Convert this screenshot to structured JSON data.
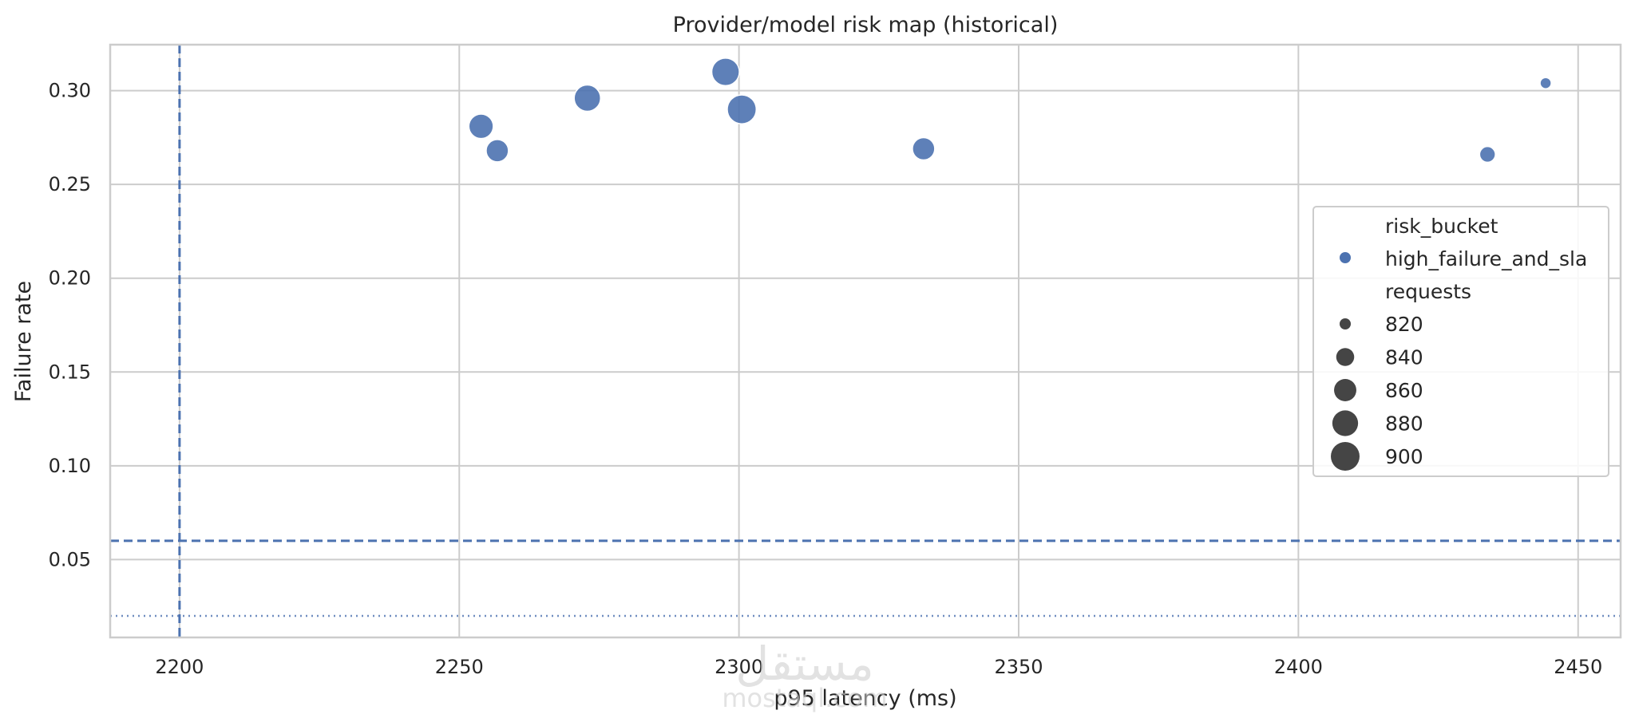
{
  "chart_data": {
    "type": "scatter",
    "title": "Provider/model risk map (historical)",
    "xlabel": "p95 latency (ms)",
    "ylabel": "Failure rate",
    "xlim": [
      2187.6,
      2457.6
    ],
    "ylim": [
      0.0085,
      0.3245
    ],
    "xticks": [
      2200,
      2250,
      2300,
      2350,
      2400,
      2450
    ],
    "yticks": [
      0.05,
      0.1,
      0.15,
      0.2,
      0.25,
      0.3
    ],
    "xtick_labels": [
      "2200",
      "2250",
      "2300",
      "2350",
      "2400",
      "2450"
    ],
    "ytick_labels": [
      "0.05",
      "0.10",
      "0.15",
      "0.20",
      "0.25",
      "0.30"
    ],
    "grid": true,
    "color": "#4c72b0",
    "reference_lines": {
      "vertical_dashed_x": 2200,
      "horizontal_dashed_y": 0.06,
      "horizontal_dotted_y": 0.02
    },
    "series": [
      {
        "name": "high_failure_and_sla",
        "points": [
          {
            "x": 2253.9,
            "y": 0.281,
            "requests": 872
          },
          {
            "x": 2256.8,
            "y": 0.268,
            "requests": 860
          },
          {
            "x": 2272.9,
            "y": 0.296,
            "requests": 884
          },
          {
            "x": 2297.6,
            "y": 0.31,
            "requests": 892
          },
          {
            "x": 2300.5,
            "y": 0.29,
            "requests": 902
          },
          {
            "x": 2333.0,
            "y": 0.269,
            "requests": 860
          },
          {
            "x": 2433.8,
            "y": 0.266,
            "requests": 832
          },
          {
            "x": 2444.2,
            "y": 0.304,
            "requests": 820
          }
        ]
      }
    ],
    "legend": {
      "placement": "center-right",
      "hue_title": "risk_bucket",
      "hue_entries": [
        "high_failure_and_sla"
      ],
      "size_title": "requests",
      "size_entries": [
        820,
        840,
        860,
        880,
        900
      ],
      "size_labels": [
        "820",
        "840",
        "860",
        "880",
        "900"
      ]
    }
  },
  "watermark": {
    "text_ar": "مستقل",
    "text_en": "mostaql.com"
  }
}
